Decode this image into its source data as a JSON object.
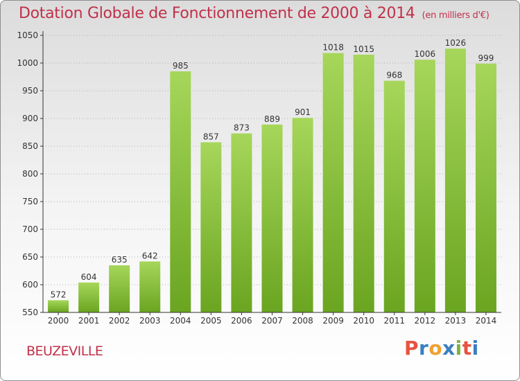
{
  "header": {
    "title": "Dotation Globale de Fonctionnement de 2000 à 2014",
    "unit": "(en milliers d'€)"
  },
  "footer": {
    "commune": "BEUZEVILLE",
    "logo": {
      "letters": [
        "P",
        "r",
        "o",
        "x",
        "i",
        "t",
        "i"
      ],
      "colors": [
        "#e8533f",
        "#3a7fc1",
        "#f0a030",
        "#3a7fc1",
        "#7cb342",
        "#e8533f",
        "#3a7fc1"
      ]
    }
  },
  "colors": {
    "bar_light": "#a6d65a",
    "bar_dark": "#6aa520",
    "axis": "#333333",
    "grid": "#b0b0b0",
    "title": "#c0304a"
  },
  "chart_data": {
    "type": "bar",
    "categories": [
      "2000",
      "2001",
      "2002",
      "2003",
      "2004",
      "2005",
      "2006",
      "2007",
      "2008",
      "2009",
      "2010",
      "2011",
      "2012",
      "2013",
      "2014"
    ],
    "values": [
      572,
      604,
      635,
      642,
      985,
      857,
      873,
      889,
      901,
      1018,
      1015,
      968,
      1006,
      1026,
      999
    ],
    "ylim": [
      550,
      1050
    ],
    "yticks": [
      550,
      600,
      650,
      700,
      750,
      800,
      850,
      900,
      950,
      1000,
      1050
    ],
    "grid": true,
    "legend": "none"
  }
}
